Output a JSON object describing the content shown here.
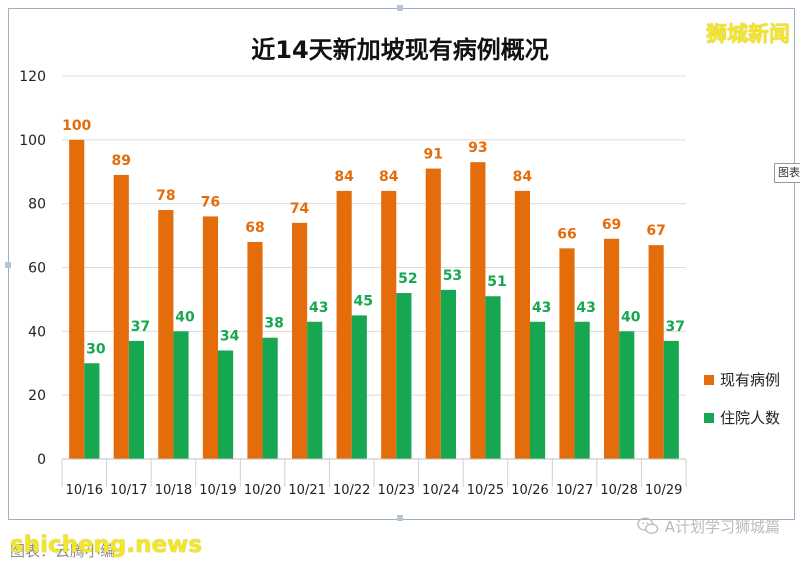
{
  "watermark": {
    "brand": "狮城新闻",
    "url": "shicheng.news",
    "source": "图表：云腾小编",
    "wechat": "A计划学习狮城篇"
  },
  "side_tab": {
    "label": "图表"
  },
  "colors": {
    "current": "#E46C0A",
    "hospital": "#18A751"
  },
  "chart_data": {
    "type": "bar",
    "title": "近14天新加坡现有病例概况",
    "categories": [
      "10/16",
      "10/17",
      "10/18",
      "10/19",
      "10/20",
      "10/21",
      "10/22",
      "10/23",
      "10/24",
      "10/25",
      "10/26",
      "10/27",
      "10/28",
      "10/29"
    ],
    "series": [
      {
        "name": "现有病例",
        "values": [
          100,
          89,
          78,
          76,
          68,
          74,
          84,
          84,
          91,
          93,
          84,
          66,
          69,
          67
        ]
      },
      {
        "name": "住院人数",
        "values": [
          30,
          37,
          40,
          34,
          38,
          43,
          45,
          52,
          53,
          51,
          43,
          43,
          40,
          37
        ]
      }
    ],
    "ylim": [
      0,
      120
    ],
    "yticks": [
      0,
      20,
      40,
      60,
      80,
      100,
      120
    ],
    "grid": true,
    "legend": "right"
  }
}
